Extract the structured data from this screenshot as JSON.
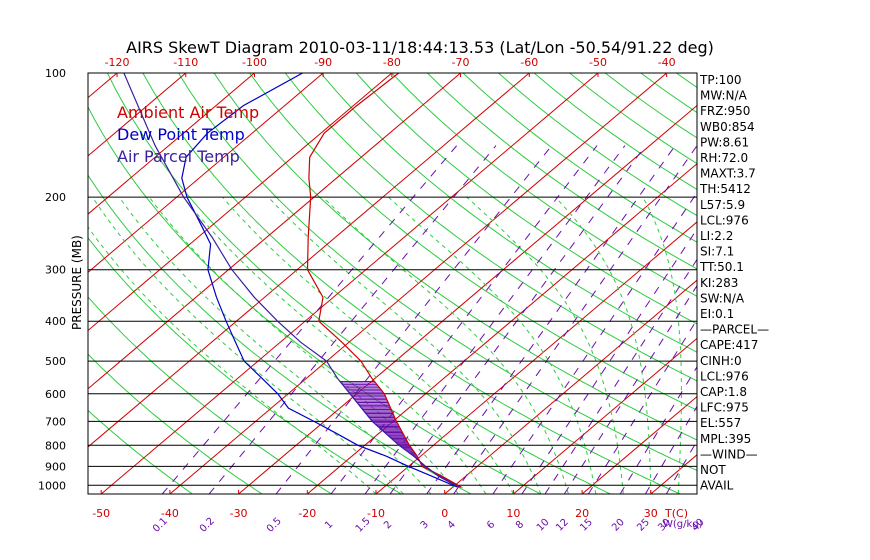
{
  "chart_data": {
    "type": "line",
    "title": "AIRS SkewT Diagram 2010-03-11/18:44:13.53 (Lat/Lon -50.54/91.22 deg)",
    "ylabel": "PRESSURE (MB)",
    "xlabel": "T(C)",
    "mix_unit": "W(g/kg)",
    "pressure_ticks": [
      100,
      200,
      300,
      400,
      500,
      600,
      700,
      800,
      900,
      1000
    ],
    "top_temp_ticks": [
      -120,
      -110,
      -100,
      -90,
      -80,
      -70,
      -60,
      -50,
      -40
    ],
    "bottom_temp_ticks": [
      -50,
      -40,
      -30,
      -20,
      -10,
      0,
      10,
      20,
      30
    ],
    "mixing_ratio_ticks": [
      "0.1",
      "0.2",
      "0.5",
      "1",
      "1.5",
      "2",
      "3",
      "4",
      "6",
      "8",
      "10",
      "12",
      "15",
      "20",
      "25",
      "30",
      "40"
    ],
    "legend": [
      {
        "label": "Ambient Air Temp",
        "color": "#d00000"
      },
      {
        "label": "Dew Point Temp",
        "color": "#0000c8"
      },
      {
        "label": "Air Parcel Temp",
        "color": "#3a1fa0"
      }
    ],
    "series": [
      {
        "name": "Ambient Air Temp",
        "color": "#d00000",
        "points": [
          [
            1010,
            1.2
          ],
          [
            950,
            -3.5
          ],
          [
            900,
            -8
          ],
          [
            850,
            -10.5
          ],
          [
            800,
            -13.5
          ],
          [
            700,
            -19.5
          ],
          [
            600,
            -26
          ],
          [
            550,
            -30.5
          ],
          [
            500,
            -35
          ],
          [
            450,
            -41
          ],
          [
            400,
            -48
          ],
          [
            350,
            -51.5
          ],
          [
            300,
            -58.5
          ],
          [
            250,
            -64
          ],
          [
            200,
            -70.5
          ],
          [
            180,
            -74
          ],
          [
            160,
            -77.5
          ],
          [
            140,
            -79.5
          ],
          [
            120,
            -79.5
          ],
          [
            100,
            -79
          ]
        ]
      },
      {
        "name": "Dew Point Temp",
        "color": "#0000c8",
        "points": [
          [
            1010,
            0.6
          ],
          [
            950,
            -5
          ],
          [
            900,
            -10
          ],
          [
            850,
            -15
          ],
          [
            800,
            -21
          ],
          [
            750,
            -26
          ],
          [
            700,
            -31.5
          ],
          [
            650,
            -37.5
          ],
          [
            600,
            -41.5
          ],
          [
            550,
            -46.5
          ],
          [
            500,
            -52
          ],
          [
            450,
            -56.5
          ],
          [
            400,
            -61.5
          ],
          [
            350,
            -67
          ],
          [
            300,
            -73
          ],
          [
            260,
            -77
          ],
          [
            240,
            -80.5
          ],
          [
            200,
            -88.5
          ],
          [
            180,
            -92.5
          ],
          [
            160,
            -95.5
          ],
          [
            140,
            -96.5
          ],
          [
            120,
            -96
          ],
          [
            100,
            -93
          ]
        ]
      },
      {
        "name": "Air Parcel Temp",
        "color": "#3a1fa0",
        "points": [
          [
            1010,
            0.8
          ],
          [
            950,
            -4
          ],
          [
            900,
            -7.5
          ],
          [
            850,
            -11
          ],
          [
            800,
            -15
          ],
          [
            700,
            -23
          ],
          [
            600,
            -31
          ],
          [
            550,
            -35.5
          ],
          [
            500,
            -40
          ],
          [
            450,
            -47
          ],
          [
            400,
            -54
          ],
          [
            350,
            -61.5
          ],
          [
            300,
            -69.5
          ],
          [
            250,
            -78
          ],
          [
            200,
            -89
          ],
          [
            150,
            -102
          ],
          [
            100,
            -119
          ]
        ]
      }
    ]
  },
  "indices": [
    "TP:100",
    "MW:N/A",
    "FRZ:950",
    "WB0:854",
    "PW:8.61",
    "RH:72.0",
    "MAXT:3.7",
    "TH:5412",
    "L57:5.9",
    "LCL:976",
    "LI:2.2",
    "SI:7.1",
    "TT:50.1",
    "KI:283",
    "SW:N/A",
    "EI:0.1",
    "—PARCEL—",
    "CAPE:417",
    "CINH:0",
    "LCL:976",
    "CAP:1.8",
    "LFC:975",
    "EL:557",
    "MPL:395",
    "—WIND—",
    "NOT",
    "AVAIL"
  ]
}
